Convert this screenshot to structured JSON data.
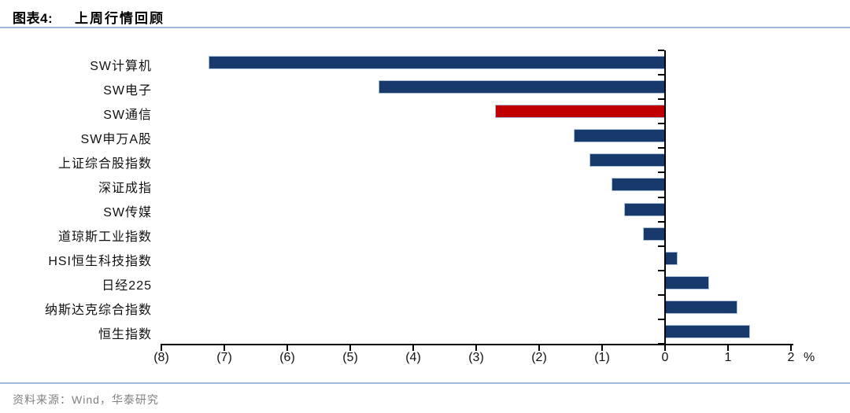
{
  "header": {
    "figure_label": "图表4:",
    "title": "上周行情回顾"
  },
  "footer": {
    "source": "资料来源：Wind，华泰研究"
  },
  "colors": {
    "bar_navy": "#17396B",
    "bar_red": "#C00000",
    "bar_outline": "#AEC3DE",
    "accent_line": "#9DB8D8",
    "axis_black": "#000000",
    "source_gray": "#808080"
  },
  "chart_data": {
    "type": "bar",
    "orientation": "horizontal",
    "title": "上周行情回顾",
    "categories": [
      "SW计算机",
      "SW电子",
      "SW通信",
      "SW申万A股",
      "上证综合股指数",
      "深证成指",
      "SW传媒",
      "道琼斯工业指数",
      "HSI恒生科技指数",
      "日经225",
      "纳斯达克综合指数",
      "恒生指数"
    ],
    "values": [
      -7.25,
      -4.55,
      -2.7,
      -1.45,
      -1.2,
      -0.85,
      -0.65,
      -0.35,
      0.2,
      0.7,
      1.15,
      1.35
    ],
    "highlight_category": "SW通信",
    "xlim": [
      -8,
      2
    ],
    "xticks": [
      -8,
      -7,
      -6,
      -5,
      -4,
      -3,
      -2,
      -1,
      0,
      1,
      2
    ],
    "xtick_labels": [
      "(8)",
      "(7)",
      "(6)",
      "(5)",
      "(4)",
      "(3)",
      "(2)",
      "(1)",
      "0",
      "1",
      "2"
    ],
    "unit_label": "%",
    "negative_format": "parentheses",
    "grid": false,
    "legend": false
  }
}
